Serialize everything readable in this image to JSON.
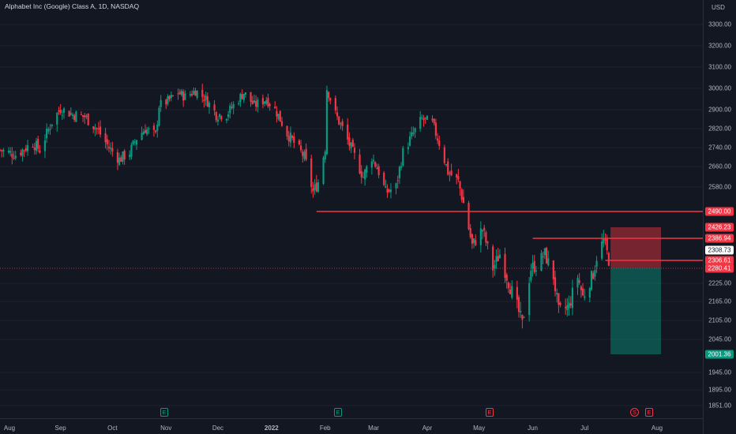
{
  "header": {
    "title": "Alphabet Inc (Google) Class A, 1D, NASDAQ",
    "currency": "USD"
  },
  "colors": {
    "background": "#131722",
    "up": "#089981",
    "down": "#f23645",
    "grid": "#1e222d",
    "axis_text": "#b2b5be"
  },
  "price_axis": {
    "ticks": [
      "3300.00",
      "3200.00",
      "3100.00",
      "3000.00",
      "2900.00",
      "2820.00",
      "2740.00",
      "2660.00",
      "2580.00",
      "2225.00",
      "2165.00",
      "2105.00",
      "2045.00",
      "1945.00",
      "1895.00",
      "1851.00"
    ],
    "tags": {
      "level_1": "2490.00",
      "stop": "2426.23",
      "level_2": "2386.94",
      "current": "2308.73",
      "level_3": "2306.61",
      "entry": "2280.41",
      "target": "2001.36"
    }
  },
  "time_axis": {
    "labels": [
      "Aug",
      "Sep",
      "Oct",
      "Nov",
      "Dec",
      "2022",
      "Feb",
      "Mar",
      "Apr",
      "May",
      "Jun",
      "Jul",
      "Aug"
    ]
  },
  "events": {
    "earnings_label": "E",
    "dividend_label": "S"
  },
  "chart_data": {
    "type": "candlestick",
    "title": "Alphabet Inc (Google) Class A, 1D, NASDAQ",
    "currency": "USD",
    "x_range": [
      "2021-07-28",
      "2022-07-26"
    ],
    "y_range_visible": [
      1840,
      3330
    ],
    "tick_values": [
      3300,
      3200,
      3100,
      3000,
      2900,
      2820,
      2740,
      2660,
      2580,
      2225,
      2165,
      2105,
      2045,
      1945,
      1895,
      1851
    ],
    "horizontal_levels": [
      2490.0,
      2386.94,
      2306.61
    ],
    "price_tags": [
      2490.0,
      2426.23,
      2386.94,
      2308.73,
      2306.61,
      2280.41,
      2001.36
    ],
    "last_price": 2308.73,
    "short_position": {
      "entry": 2280.41,
      "stop": 2426.23,
      "target": 2001.36
    },
    "close_path": [
      [
        "2021-07-28",
        2730
      ],
      [
        "2021-08-06",
        2710
      ],
      [
        "2021-08-16",
        2760
      ],
      [
        "2021-08-20",
        2730
      ],
      [
        "2021-08-27",
        2850
      ],
      [
        "2021-09-01",
        2905
      ],
      [
        "2021-09-08",
        2880
      ],
      [
        "2021-09-15",
        2870
      ],
      [
        "2021-09-22",
        2820
      ],
      [
        "2021-09-29",
        2740
      ],
      [
        "2021-10-05",
        2690
      ],
      [
        "2021-10-11",
        2720
      ],
      [
        "2021-10-15",
        2780
      ],
      [
        "2021-10-20",
        2820
      ],
      [
        "2021-10-26",
        2790
      ],
      [
        "2021-10-28",
        2920
      ],
      [
        "2021-11-02",
        2940
      ],
      [
        "2021-11-08",
        2980
      ],
      [
        "2021-11-12",
        2960
      ],
      [
        "2021-11-18",
        2990
      ],
      [
        "2021-11-24",
        2950
      ],
      [
        "2021-11-30",
        2880
      ],
      [
        "2021-12-06",
        2880
      ],
      [
        "2021-12-10",
        2920
      ],
      [
        "2021-12-16",
        2980
      ],
      [
        "2021-12-22",
        2920
      ],
      [
        "2021-12-29",
        2950
      ],
      [
        "2022-01-04",
        2890
      ],
      [
        "2022-01-10",
        2800
      ],
      [
        "2022-01-14",
        2760
      ],
      [
        "2022-01-20",
        2700
      ],
      [
        "2022-01-25",
        2560
      ],
      [
        "2022-01-28",
        2600
      ],
      [
        "2022-02-01",
        2740
      ],
      [
        "2022-02-02",
        3000
      ],
      [
        "2022-02-07",
        2880
      ],
      [
        "2022-02-11",
        2820
      ],
      [
        "2022-02-17",
        2720
      ],
      [
        "2022-02-23",
        2620
      ],
      [
        "2022-02-28",
        2700
      ],
      [
        "2022-03-04",
        2640
      ],
      [
        "2022-03-08",
        2560
      ],
      [
        "2022-03-14",
        2580
      ],
      [
        "2022-03-18",
        2720
      ],
      [
        "2022-03-24",
        2800
      ],
      [
        "2022-03-29",
        2860
      ],
      [
        "2022-04-04",
        2840
      ],
      [
        "2022-04-08",
        2760
      ],
      [
        "2022-04-13",
        2640
      ],
      [
        "2022-04-19",
        2600
      ],
      [
        "2022-04-22",
        2520
      ],
      [
        "2022-04-27",
        2360
      ],
      [
        "2022-05-03",
        2420
      ],
      [
        "2022-05-09",
        2280
      ],
      [
        "2022-05-13",
        2330
      ],
      [
        "2022-05-18",
        2230
      ],
      [
        "2022-05-24",
        2130
      ],
      [
        "2022-05-26",
        2090
      ],
      [
        "2022-05-31",
        2280
      ],
      [
        "2022-06-03",
        2290
      ],
      [
        "2022-06-08",
        2330
      ],
      [
        "2022-06-13",
        2250
      ],
      [
        "2022-06-16",
        2130
      ],
      [
        "2022-06-22",
        2150
      ],
      [
        "2022-06-27",
        2250
      ],
      [
        "2022-06-30",
        2180
      ],
      [
        "2022-07-06",
        2260
      ],
      [
        "2022-07-08",
        2320
      ],
      [
        "2022-07-12",
        2380
      ],
      [
        "2022-07-15",
        2310
      ]
    ]
  }
}
